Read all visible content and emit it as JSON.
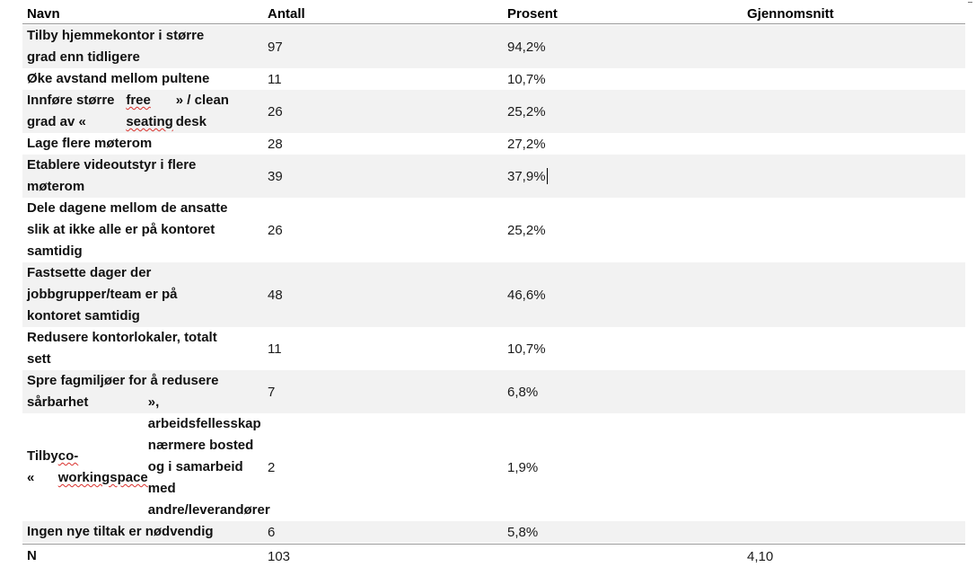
{
  "table": {
    "headers": {
      "name": "Navn",
      "count": "Antall",
      "percent": "Prosent",
      "average": "Gjennomsnitt"
    },
    "rows": [
      {
        "name": "Tilby hjemmekontor i større grad enn tidligere",
        "count": "97",
        "percent": "94,2%"
      },
      {
        "name": "Øke avstand mellom pultene",
        "count": "11",
        "percent": "10,7%"
      },
      {
        "name": "Innføre større grad av «free seating» / clean desk",
        "count": "26",
        "percent": "25,2%"
      },
      {
        "name": "Lage flere møterom",
        "count": "28",
        "percent": "27,2%"
      },
      {
        "name": "Etablere videoutstyr i flere møterom",
        "count": "39",
        "percent": "37,9%"
      },
      {
        "name": "Dele dagene mellom de ansatte slik at ikke alle er på kontoret samtidig",
        "count": "26",
        "percent": "25,2%"
      },
      {
        "name": "Fastsette dager der jobbgrupper/team er på kontoret samtidig",
        "count": "48",
        "percent": "46,6%"
      },
      {
        "name": "Redusere kontorlokaler, totalt sett",
        "count": "11",
        "percent": "10,7%"
      },
      {
        "name": "Spre fagmiljøer for å redusere sårbarhet",
        "count": "7",
        "percent": "6,8%"
      },
      {
        "name": "Tilby «co-workingspace», arbeidsfellesskap nærmere bosted og i samarbeid med andre/leverandører av den slags",
        "count": "2",
        "percent": "1,9%"
      },
      {
        "name": "Ingen nye tiltak er nødvendig",
        "count": "6",
        "percent": "5,8%"
      }
    ],
    "footer": {
      "label": "N",
      "count": "103",
      "average": "4,10"
    }
  }
}
